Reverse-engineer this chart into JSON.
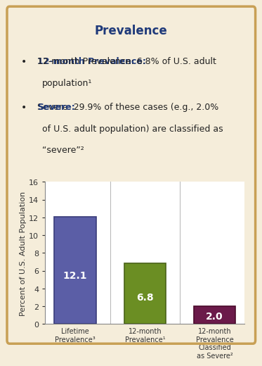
{
  "title": "Prevalence",
  "title_color": "#1F3A7A",
  "bullet_bold_color": "#1F3A7A",
  "bullet_text_color": "#222222",
  "b1_bold": "12-month Prevalence:",
  "b1_line1_rest": " 6.8% of U.S. adult",
  "b1_line2": "population¹",
  "b2_bold": "Severe:",
  "b2_line1_rest": " 29.9% of these cases (e.g., 2.0%",
  "b2_line2": "of U.S. adult population) are classified as",
  "b2_line3": "“severe”²",
  "categories": [
    "Lifetime\nPrevalence³",
    "12-month\nPrevalence¹",
    "12-month\nPrevalence\nClassified\nas Severe²"
  ],
  "values": [
    12.1,
    6.8,
    2.0
  ],
  "bar_colors": [
    "#5B5EA6",
    "#6B8E23",
    "#6B1A4A"
  ],
  "bar_edge_colors": [
    "#3A3D7A",
    "#4A6218",
    "#4A0A2A"
  ],
  "value_labels": [
    "12.1",
    "6.8",
    "2.0"
  ],
  "ylabel": "Percent of U.S. Adult Population",
  "ylim": [
    0,
    16
  ],
  "yticks": [
    0,
    2,
    4,
    6,
    8,
    10,
    12,
    14,
    16
  ],
  "background_color": "#F5EDDA",
  "plot_bg_color": "#FFFFFF",
  "bar_label_color": "#FFFFFF",
  "bar_label_fontsize": 10,
  "ylabel_fontsize": 8,
  "title_fontsize": 12
}
